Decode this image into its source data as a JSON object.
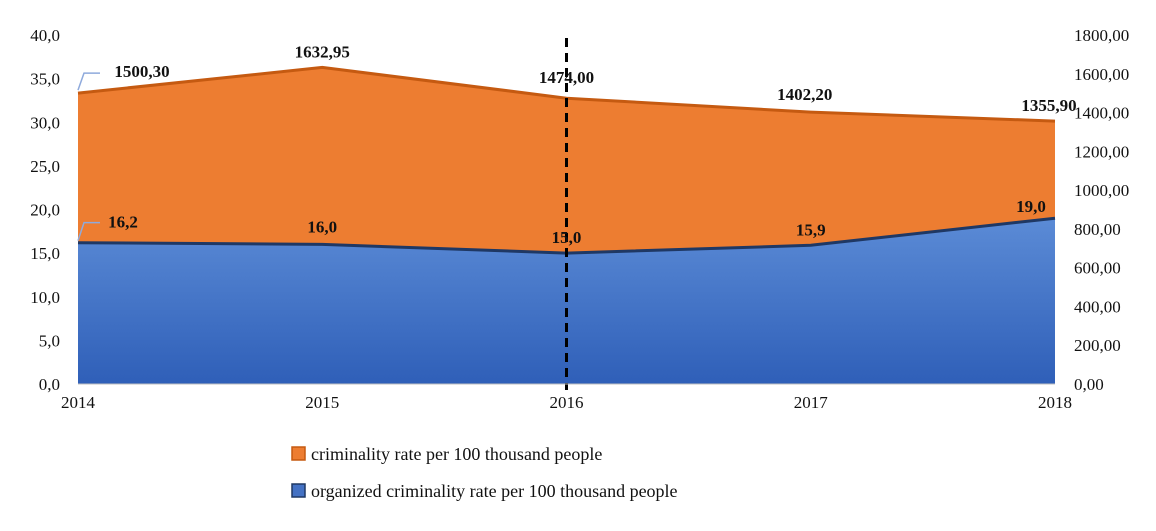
{
  "chart_data": {
    "type": "area",
    "categories": [
      "2014",
      "2015",
      "2016",
      "2017",
      "2018"
    ],
    "series": [
      {
        "name": "criminality rate per 100 thousand people",
        "axis": "right",
        "values": [
          1500.3,
          1632.95,
          1474.0,
          1402.2,
          1355.9
        ],
        "labels": [
          "1500,30",
          "1632,95",
          "1474,00",
          "1402,20",
          "1355,90"
        ],
        "fill": "#ED7D31",
        "line": "#C55A11"
      },
      {
        "name": "organized criminality rate per 100 thousand people",
        "axis": "left",
        "values": [
          16.2,
          16.0,
          15.0,
          15.9,
          19.0
        ],
        "labels": [
          "16,2",
          "16,0",
          "15,0",
          "15,9",
          "19,0"
        ],
        "fill": "#4472C4",
        "line": "#1F3864"
      }
    ],
    "y_left": {
      "ylim": [
        0,
        40
      ],
      "ticks": [
        "0,0",
        "5,0",
        "10,0",
        "15,0",
        "20,0",
        "25,0",
        "30,0",
        "35,0",
        "40,0"
      ]
    },
    "y_right": {
      "ylim": [
        0,
        1800
      ],
      "ticks": [
        "0,00",
        "200,00",
        "400,00",
        "600,00",
        "800,00",
        "1000,00",
        "1200,00",
        "1400,00",
        "1600,00",
        "1800,00"
      ]
    },
    "reference_line": {
      "x": "2016",
      "style": "dashed"
    },
    "grid": false,
    "legend_position": "bottom"
  }
}
